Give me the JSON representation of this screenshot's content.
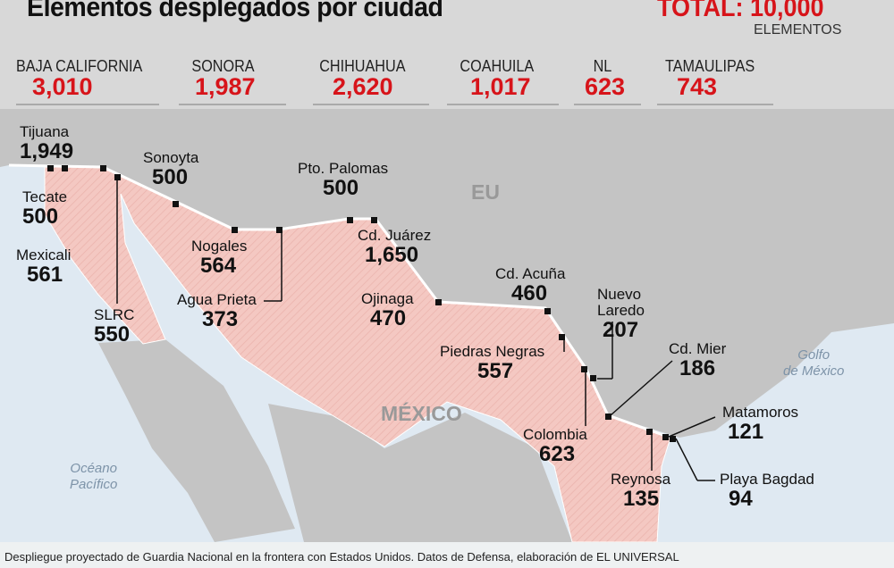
{
  "header": {
    "title": "Elementos desplegados por ciudad",
    "total": "TOTAL: 10,000",
    "total_unit": "ELEMENTOS"
  },
  "states": [
    {
      "name": "BAJA CALIFORNIA",
      "value": "3,010"
    },
    {
      "name": "SONORA",
      "value": "1,987"
    },
    {
      "name": "CHIHUAHUA",
      "value": "2,620"
    },
    {
      "name": "COAHUILA",
      "value": "1,017"
    },
    {
      "name": "NL",
      "value": "623"
    },
    {
      "name": "TAMAULIPAS",
      "value": "743"
    }
  ],
  "map": {
    "us_label": "EU",
    "mx_label": "MÉXICO",
    "pacific": "Océano\nPacífico",
    "gulf": "Golfo\nde México",
    "colors": {
      "mexico": "#f4c8c2",
      "land": "#c4c4c4",
      "sea": "#dfe9f2",
      "accent": "#d7141a"
    }
  },
  "cities": [
    {
      "name": "Tijuana",
      "value": "1,949"
    },
    {
      "name": "Tecate",
      "value": "500"
    },
    {
      "name": "Mexicali",
      "value": "561"
    },
    {
      "name": "SLRC",
      "value": "550"
    },
    {
      "name": "Sonoyta",
      "value": "500"
    },
    {
      "name": "Nogales",
      "value": "564"
    },
    {
      "name": "Agua Prieta",
      "value": "373"
    },
    {
      "name": "Pto. Palomas",
      "value": "500"
    },
    {
      "name": "Cd. Juárez",
      "value": "1,650"
    },
    {
      "name": "Ojinaga",
      "value": "470"
    },
    {
      "name": "Cd. Acuña",
      "value": "460"
    },
    {
      "name": "Nuevo Laredo",
      "value": "207"
    },
    {
      "name": "Piedras Negras",
      "value": "557"
    },
    {
      "name": "Colombia",
      "value": "623"
    },
    {
      "name": "Cd. Mier",
      "value": "186"
    },
    {
      "name": "Matamoros",
      "value": "121"
    },
    {
      "name": "Reynosa",
      "value": "135"
    },
    {
      "name": "Playa Bagdad",
      "value": "94"
    }
  ],
  "caption": "Despliegue proyectado de Guardia Nacional en la frontera con Estados Unidos. Datos de Defensa, elaboración de EL UNIVERSAL"
}
